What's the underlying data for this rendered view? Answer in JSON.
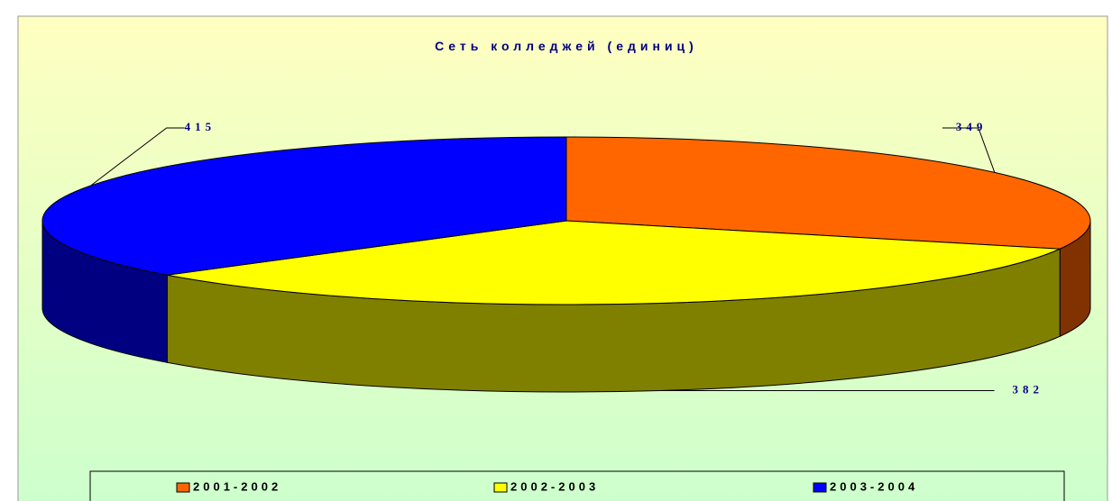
{
  "chart_data": {
    "type": "pie3d",
    "title": "Сеть колледжей (единиц)",
    "categories": [
      "2001-2002",
      "2002-2003",
      "2003-2004"
    ],
    "values": [
      349,
      382,
      415
    ],
    "colors": [
      "#ff6600",
      "#ffff00",
      "#0000ff"
    ],
    "side_colors": [
      "#803300",
      "#808000",
      "#000080"
    ],
    "legend": "bottom"
  }
}
